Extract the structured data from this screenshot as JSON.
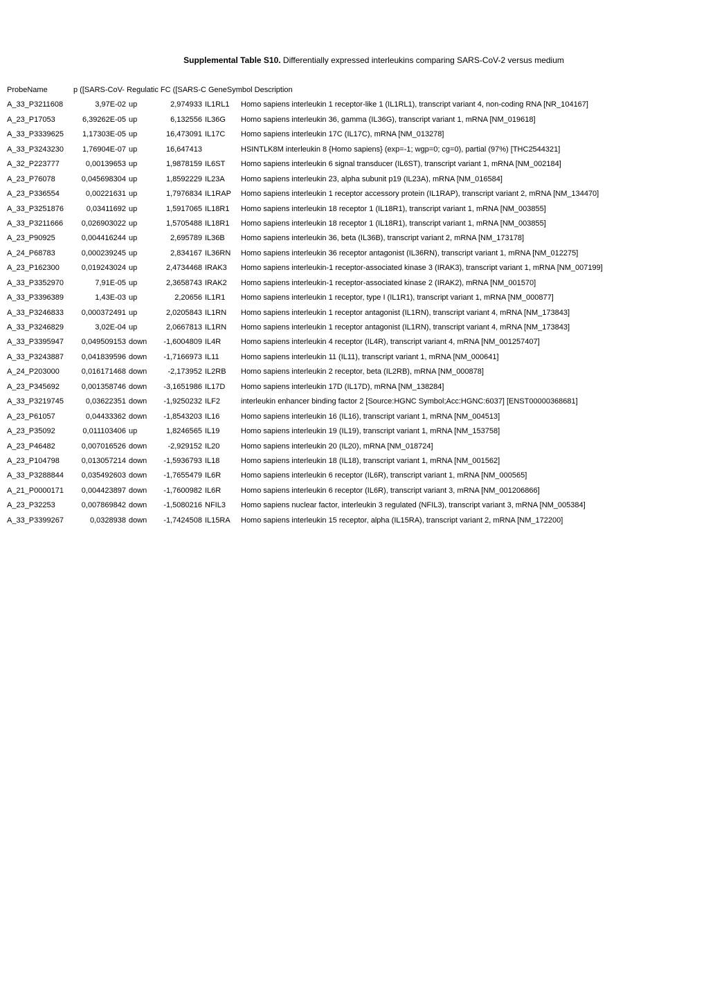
{
  "title_bold": "Supplemental Table S10.",
  "title_rest": " Differentially expressed interleukins comparing SARS-CoV-2 versus medium",
  "headers": {
    "probe": "ProbeName",
    "pval": "p ([SARS-CoV- Regulatic FC ([SARS-C GeneSymbol Description"
  },
  "columns": [
    "ProbeName",
    "p ([SARS-CoV-",
    "Regulatic",
    "FC ([SARS-C",
    "GeneSymbol",
    "Description"
  ],
  "rows": [
    {
      "probe": "A_33_P3211608",
      "pval": "3,97E-02",
      "reg": "up",
      "fc": "2,974933",
      "gene": "IL1RL1",
      "desc": "Homo sapiens interleukin 1 receptor-like 1 (IL1RL1), transcript variant 4, non-coding RNA [NR_104167]"
    },
    {
      "probe": "A_23_P17053",
      "pval": "6,39262E-05",
      "reg": "up",
      "fc": "6,132556",
      "gene": "IL36G",
      "desc": "Homo sapiens interleukin 36, gamma (IL36G), transcript variant 1, mRNA [NM_019618]"
    },
    {
      "probe": "A_33_P3339625",
      "pval": "1,17303E-05",
      "reg": "up",
      "fc": "16,473091",
      "gene": "IL17C",
      "desc": "Homo sapiens interleukin 17C (IL17C), mRNA [NM_013278]"
    },
    {
      "probe": "A_33_P3243230",
      "pval": "1,76904E-07",
      "reg": "up",
      "fc": "16,647413",
      "gene": "",
      "desc": "HSINTLK8M interleukin 8 {Homo sapiens} (exp=-1; wgp=0; cg=0), partial (97%) [THC2544321]"
    },
    {
      "probe": "A_32_P223777",
      "pval": "0,00139653",
      "reg": "up",
      "fc": "1,9878159",
      "gene": "IL6ST",
      "desc": "Homo sapiens interleukin 6 signal transducer (IL6ST), transcript variant 1, mRNA [NM_002184]"
    },
    {
      "probe": "A_23_P76078",
      "pval": "0,045698304",
      "reg": "up",
      "fc": "1,8592229",
      "gene": "IL23A",
      "desc": "Homo sapiens interleukin 23, alpha subunit p19 (IL23A), mRNA [NM_016584]"
    },
    {
      "probe": "A_23_P336554",
      "pval": "0,00221631",
      "reg": "up",
      "fc": "1,7976834",
      "gene": "IL1RAP",
      "desc": "Homo sapiens interleukin 1 receptor accessory protein (IL1RAP), transcript variant 2, mRNA [NM_134470]"
    },
    {
      "probe": "A_33_P3251876",
      "pval": "0,03411692",
      "reg": "up",
      "fc": "1,5917065",
      "gene": "IL18R1",
      "desc": "Homo sapiens interleukin 18 receptor 1 (IL18R1), transcript variant 1, mRNA [NM_003855]"
    },
    {
      "probe": "A_33_P3211666",
      "pval": "0,026903022",
      "reg": "up",
      "fc": "1,5705488",
      "gene": "IL18R1",
      "desc": "Homo sapiens interleukin 18 receptor 1 (IL18R1), transcript variant 1, mRNA [NM_003855]"
    },
    {
      "probe": "A_23_P90925",
      "pval": "0,004416244",
      "reg": "up",
      "fc": "2,695789",
      "gene": "IL36B",
      "desc": "Homo sapiens interleukin 36, beta (IL36B), transcript variant 2, mRNA [NM_173178]"
    },
    {
      "probe": "A_24_P68783",
      "pval": "0,000239245",
      "reg": "up",
      "fc": "2,834167",
      "gene": "IL36RN",
      "desc": "Homo sapiens interleukin 36 receptor antagonist (IL36RN), transcript variant 1, mRNA [NM_012275]"
    },
    {
      "probe": "A_23_P162300",
      "pval": "0,019243024",
      "reg": "up",
      "fc": "2,4734468",
      "gene": "IRAK3",
      "desc": "Homo sapiens interleukin-1 receptor-associated kinase 3 (IRAK3), transcript variant 1, mRNA [NM_007199]"
    },
    {
      "probe": "A_33_P3352970",
      "pval": "7,91E-05",
      "reg": "up",
      "fc": "2,3658743",
      "gene": "IRAK2",
      "desc": "Homo sapiens interleukin-1 receptor-associated kinase 2 (IRAK2), mRNA [NM_001570]"
    },
    {
      "probe": "A_33_P3396389",
      "pval": "1,43E-03",
      "reg": "up",
      "fc": "2,20656",
      "gene": "IL1R1",
      "desc": "Homo sapiens interleukin 1 receptor, type I (IL1R1), transcript variant 1, mRNA [NM_000877]"
    },
    {
      "probe": "A_33_P3246833",
      "pval": "0,000372491",
      "reg": "up",
      "fc": "2,0205843",
      "gene": "IL1RN",
      "desc": "Homo sapiens interleukin 1 receptor antagonist (IL1RN), transcript variant 4, mRNA [NM_173843]"
    },
    {
      "probe": "A_33_P3246829",
      "pval": "3,02E-04",
      "reg": "up",
      "fc": "2,0667813",
      "gene": "IL1RN",
      "desc": "Homo sapiens interleukin 1 receptor antagonist (IL1RN), transcript variant 4, mRNA [NM_173843]"
    },
    {
      "probe": "A_33_P3395947",
      "pval": "0,049509153",
      "reg": "down",
      "fc": "-1,6004809",
      "gene": "IL4R",
      "desc": "Homo sapiens interleukin 4 receptor (IL4R), transcript variant 4, mRNA [NM_001257407]"
    },
    {
      "probe": "A_33_P3243887",
      "pval": "0,041839596",
      "reg": "down",
      "fc": "-1,7166973",
      "gene": "IL11",
      "desc": "Homo sapiens interleukin 11 (IL11), transcript variant 1, mRNA [NM_000641]"
    },
    {
      "probe": "A_24_P203000",
      "pval": "0,016171468",
      "reg": "down",
      "fc": "-2,173952",
      "gene": "IL2RB",
      "desc": "Homo sapiens interleukin 2 receptor, beta (IL2RB), mRNA [NM_000878]"
    },
    {
      "probe": "A_23_P345692",
      "pval": "0,001358746",
      "reg": "down",
      "fc": "-3,1651986",
      "gene": "IL17D",
      "desc": "Homo sapiens interleukin 17D (IL17D), mRNA [NM_138284]"
    },
    {
      "probe": "A_33_P3219745",
      "pval": "0,03622351",
      "reg": "down",
      "fc": "-1,9250232",
      "gene": "ILF2",
      "desc": "interleukin enhancer binding factor 2 [Source:HGNC Symbol;Acc:HGNC:6037] [ENST00000368681]"
    },
    {
      "probe": "A_23_P61057",
      "pval": "0,04433362",
      "reg": "down",
      "fc": "-1,8543203",
      "gene": "IL16",
      "desc": "Homo sapiens interleukin 16 (IL16), transcript variant 1, mRNA [NM_004513]"
    },
    {
      "probe": "A_23_P35092",
      "pval": "0,011103406",
      "reg": "up",
      "fc": "1,8246565",
      "gene": "IL19",
      "desc": "Homo sapiens interleukin 19 (IL19), transcript variant 1, mRNA [NM_153758]"
    },
    {
      "probe": "A_23_P46482",
      "pval": "0,007016526",
      "reg": "down",
      "fc": "-2,929152",
      "gene": "IL20",
      "desc": "Homo sapiens interleukin 20 (IL20), mRNA [NM_018724]"
    },
    {
      "probe": "A_23_P104798",
      "pval": "0,013057214",
      "reg": "down",
      "fc": "-1,5936793",
      "gene": "IL18",
      "desc": "Homo sapiens interleukin 18 (IL18), transcript variant 1, mRNA [NM_001562]"
    },
    {
      "probe": "A_33_P3288844",
      "pval": "0,035492603",
      "reg": "down",
      "fc": "-1,7655479",
      "gene": "IL6R",
      "desc": "Homo sapiens interleukin 6 receptor (IL6R), transcript variant 1, mRNA [NM_000565]"
    },
    {
      "probe": "A_21_P0000171",
      "pval": "0,004423897",
      "reg": "down",
      "fc": "-1,7600982",
      "gene": "IL6R",
      "desc": "Homo sapiens interleukin 6 receptor (IL6R), transcript variant 3, mRNA [NM_001206866]"
    },
    {
      "probe": "A_23_P32253",
      "pval": "0,007869842",
      "reg": "down",
      "fc": "-1,5080216",
      "gene": "NFIL3",
      "desc": "Homo sapiens nuclear factor, interleukin 3 regulated (NFIL3), transcript variant 3, mRNA [NM_005384]"
    },
    {
      "probe": "A_33_P3399267",
      "pval": "0,0328938",
      "reg": "down",
      "fc": "-1,7424508",
      "gene": "IL15RA",
      "desc": "Homo sapiens interleukin 15 receptor, alpha (IL15RA), transcript variant 2, mRNA [NM_172200]"
    }
  ]
}
